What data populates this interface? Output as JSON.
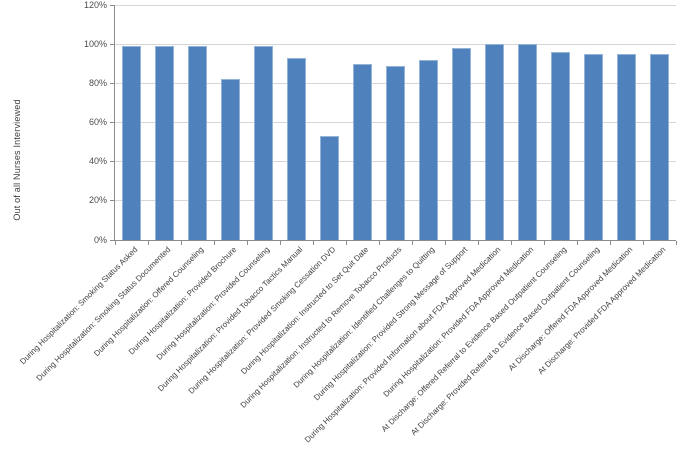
{
  "chart_data": {
    "type": "bar",
    "title": "",
    "xlabel": "",
    "ylabel": "Out of all  Nurses Interviewed",
    "ylim": [
      0,
      120
    ],
    "ytick_step": 20,
    "ytick_labels": [
      "0%",
      "20%",
      "40%",
      "60%",
      "80%",
      "100%",
      "120%"
    ],
    "grid": true,
    "legend_position": "none",
    "bar_color": "#4f81bd",
    "bar_border_color": "#95b3d7",
    "categories": [
      "During Hospitalization: Smoking Status Asked",
      "During Hospitalization: Smoking Status Documented",
      "During Hospitalization: Offered Counseling",
      "During Hospitalization: Provided Brochure",
      "During Hospitalization: Provided Counseling",
      "During Hospitalization: Provided Tobacco Tactics Manual",
      "During Hospitalization: Provided Smoking Cessation DVD",
      "During Hospitalization: Instructed to Set Quit Date",
      "During Hospitalization: Instructed to Remove Tobacco Products",
      "During Hospitalization: Identified Challenges to Quitting",
      "During Hospitalization: Provided Strong Message of Support",
      "During Hospitalization: Provided Information about FDA Approved Medication",
      "During Hospitalization: Provided FDA Approved Medication",
      "At Discharge: Offered Referral to Evidence Based Outpatient Counseling",
      "At Discharge: Provided Referral to Evidence Based Outpatient Counseling",
      "At Discharge: Offered FDA Approved Medication",
      "At Discharge: Provided FDA Approved Medication"
    ],
    "values": [
      99,
      99,
      99,
      82,
      99,
      93,
      53,
      90,
      89,
      92,
      98,
      100,
      100,
      96,
      95,
      95,
      95
    ]
  }
}
